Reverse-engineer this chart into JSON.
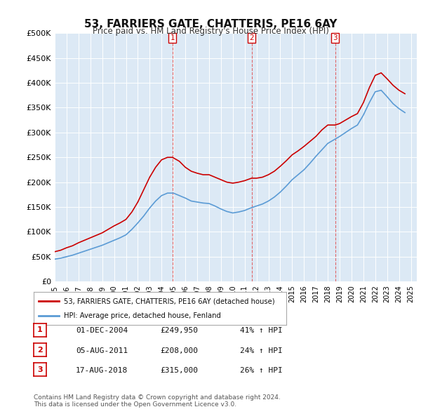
{
  "title": "53, FARRIERS GATE, CHATTERIS, PE16 6AY",
  "subtitle": "Price paid vs. HM Land Registry's House Price Index (HPI)",
  "background_color": "#dce9f5",
  "plot_bg_color": "#dce9f5",
  "ylabel_color": "#222222",
  "ylim": [
    0,
    500000
  ],
  "yticks": [
    0,
    50000,
    100000,
    150000,
    200000,
    250000,
    300000,
    350000,
    400000,
    450000,
    500000
  ],
  "ytick_labels": [
    "£0",
    "£50K",
    "£100K",
    "£150K",
    "£200K",
    "£250K",
    "£300K",
    "£350K",
    "£400K",
    "£450K",
    "£500K"
  ],
  "xtick_years": [
    1995,
    1996,
    1997,
    1998,
    1999,
    2000,
    2001,
    2002,
    2003,
    2004,
    2005,
    2006,
    2007,
    2008,
    2009,
    2010,
    2011,
    2012,
    2013,
    2014,
    2015,
    2016,
    2017,
    2018,
    2019,
    2020,
    2021,
    2022,
    2023,
    2024,
    2025
  ],
  "vline_dates": [
    2004.917,
    2011.583,
    2018.625
  ],
  "vline_labels": [
    "1",
    "2",
    "3"
  ],
  "vline_color": "#e05050",
  "vline_label_color": "#cc0000",
  "red_line_color": "#cc0000",
  "blue_line_color": "#5b9bd5",
  "legend_entries": [
    "53, FARRIERS GATE, CHATTERIS, PE16 6AY (detached house)",
    "HPI: Average price, detached house, Fenland"
  ],
  "table_rows": [
    [
      "1",
      "01-DEC-2004",
      "£249,950",
      "41% ↑ HPI"
    ],
    [
      "2",
      "05-AUG-2011",
      "£208,000",
      "24% ↑ HPI"
    ],
    [
      "3",
      "17-AUG-2018",
      "£315,000",
      "26% ↑ HPI"
    ]
  ],
  "footer": "Contains HM Land Registry data © Crown copyright and database right 2024.\nThis data is licensed under the Open Government Licence v3.0.",
  "red_x": [
    1995.0,
    1995.5,
    1996.0,
    1996.5,
    1997.0,
    1997.5,
    1998.0,
    1998.5,
    1999.0,
    1999.5,
    2000.0,
    2000.5,
    2001.0,
    2001.5,
    2002.0,
    2002.5,
    2003.0,
    2003.5,
    2004.0,
    2004.5,
    2004.917,
    2005.5,
    2006.0,
    2006.5,
    2007.0,
    2007.5,
    2008.0,
    2008.5,
    2009.0,
    2009.5,
    2010.0,
    2010.5,
    2011.0,
    2011.583,
    2012.0,
    2012.5,
    2013.0,
    2013.5,
    2014.0,
    2014.5,
    2015.0,
    2015.5,
    2016.0,
    2016.5,
    2017.0,
    2017.5,
    2018.0,
    2018.625,
    2019.0,
    2019.5,
    2020.0,
    2020.5,
    2021.0,
    2021.5,
    2022.0,
    2022.5,
    2023.0,
    2023.5,
    2024.0,
    2024.5
  ],
  "red_y": [
    60000,
    63000,
    68000,
    72000,
    78000,
    83000,
    88000,
    93000,
    98000,
    105000,
    112000,
    118000,
    125000,
    140000,
    160000,
    185000,
    210000,
    230000,
    245000,
    249950,
    249950,
    242000,
    230000,
    222000,
    218000,
    215000,
    215000,
    210000,
    205000,
    200000,
    198000,
    200000,
    203000,
    208000,
    208000,
    210000,
    215000,
    222000,
    232000,
    243000,
    255000,
    263000,
    272000,
    282000,
    292000,
    305000,
    315000,
    315000,
    318000,
    325000,
    332000,
    338000,
    360000,
    390000,
    415000,
    420000,
    408000,
    395000,
    385000,
    378000
  ],
  "blue_x": [
    1995.0,
    1995.5,
    1996.0,
    1996.5,
    1997.0,
    1997.5,
    1998.0,
    1998.5,
    1999.0,
    1999.5,
    2000.0,
    2000.5,
    2001.0,
    2001.5,
    2002.0,
    2002.5,
    2003.0,
    2003.5,
    2004.0,
    2004.5,
    2005.0,
    2005.5,
    2006.0,
    2006.5,
    2007.0,
    2007.5,
    2008.0,
    2008.5,
    2009.0,
    2009.5,
    2010.0,
    2010.5,
    2011.0,
    2011.5,
    2012.0,
    2012.5,
    2013.0,
    2013.5,
    2014.0,
    2014.5,
    2015.0,
    2015.5,
    2016.0,
    2016.5,
    2017.0,
    2017.5,
    2018.0,
    2018.5,
    2019.0,
    2019.5,
    2020.0,
    2020.5,
    2021.0,
    2021.5,
    2022.0,
    2022.5,
    2023.0,
    2023.5,
    2024.0,
    2024.5
  ],
  "blue_y": [
    45000,
    47000,
    50000,
    53000,
    57000,
    61000,
    65000,
    69000,
    73000,
    78000,
    83000,
    88000,
    94000,
    105000,
    118000,
    132000,
    148000,
    162000,
    173000,
    178000,
    178000,
    173000,
    168000,
    162000,
    160000,
    158000,
    157000,
    152000,
    146000,
    141000,
    138000,
    140000,
    143000,
    148000,
    152000,
    156000,
    162000,
    170000,
    180000,
    192000,
    205000,
    215000,
    225000,
    238000,
    252000,
    265000,
    278000,
    285000,
    292000,
    300000,
    308000,
    315000,
    335000,
    360000,
    382000,
    385000,
    372000,
    358000,
    348000,
    340000
  ]
}
